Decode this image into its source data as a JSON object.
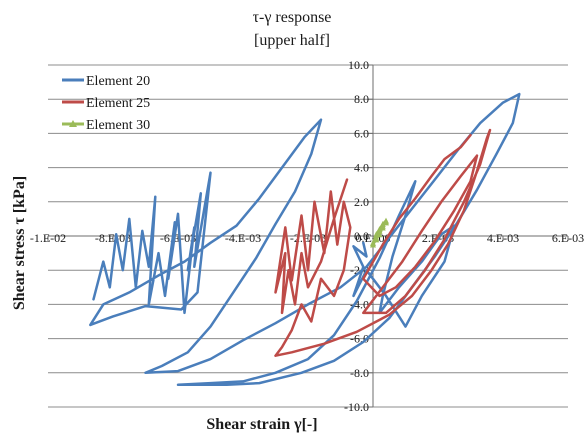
{
  "chart_data": {
    "type": "line",
    "title": "τ-γ response",
    "subtitle": "[upper half]",
    "xlabel": "Shear strain γ[-]",
    "ylabel": "Shear stress τ [kPa]",
    "xlim": [
      -0.01,
      0.006
    ],
    "ylim": [
      -10,
      10
    ],
    "x_ticks": [
      -0.01,
      -0.008,
      -0.006,
      -0.004,
      -0.002,
      0.0,
      0.002,
      0.004,
      0.006
    ],
    "x_tick_labels": [
      "-1.E-02",
      "-8.E-03",
      "-6.E-03",
      "-4.E-03",
      "-2.E-03",
      "0.E+00",
      "2.E-03",
      "4.E-03",
      "6.E-03"
    ],
    "y_ticks": [
      -10,
      -8,
      -6,
      -4,
      -2,
      0,
      2,
      4,
      6,
      8,
      10
    ],
    "y_tick_labels": [
      "-10.0",
      "-8.0",
      "-6.0",
      "-4.0",
      "-2.0",
      "0.0",
      "2.0",
      "4.0",
      "6.0",
      "8.0",
      "10.0"
    ],
    "grid": true,
    "legend_position": "top-left",
    "series": [
      {
        "name": "Element 20",
        "color": "#4a7ebb",
        "marker": "none",
        "points": [
          [
            -0.0086,
            -3.7
          ],
          [
            -0.0083,
            -1.5
          ],
          [
            -0.0081,
            -3.0
          ],
          [
            -0.0079,
            0.1
          ],
          [
            -0.0077,
            -2.0
          ],
          [
            -0.0075,
            1.0
          ],
          [
            -0.0073,
            -3.0
          ],
          [
            -0.0071,
            0.3
          ],
          [
            -0.0069,
            -1.8
          ],
          [
            -0.0067,
            2.3
          ],
          [
            -0.0069,
            -4.0
          ],
          [
            -0.0066,
            -1.0
          ],
          [
            -0.0064,
            -3.5
          ],
          [
            -0.0061,
            0.8
          ],
          [
            -0.0063,
            -2.5
          ],
          [
            -0.006,
            1.3
          ],
          [
            -0.0058,
            -4.5
          ],
          [
            -0.0055,
            0.5
          ],
          [
            -0.0057,
            -2.0
          ],
          [
            -0.0053,
            2.5
          ],
          [
            -0.0055,
            -1.8
          ],
          [
            -0.005,
            3.7
          ],
          [
            -0.0054,
            -3.3
          ],
          [
            -0.0059,
            -4.3
          ],
          [
            -0.007,
            -4.1
          ],
          [
            -0.008,
            -4.7
          ],
          [
            -0.0087,
            -5.2
          ],
          [
            -0.0083,
            -4.0
          ],
          [
            -0.0075,
            -3.3
          ],
          [
            -0.0065,
            -2.2
          ],
          [
            -0.0058,
            -1.5
          ],
          [
            -0.005,
            -0.4
          ],
          [
            -0.0042,
            0.6
          ],
          [
            -0.0035,
            2.2
          ],
          [
            -0.0028,
            4.0
          ],
          [
            -0.0021,
            5.8
          ],
          [
            -0.0016,
            6.8
          ],
          [
            -0.0019,
            4.8
          ],
          [
            -0.0024,
            2.6
          ],
          [
            -0.003,
            0.7
          ],
          [
            -0.0036,
            -1.3
          ],
          [
            -0.0043,
            -3.3
          ],
          [
            -0.005,
            -5.3
          ],
          [
            -0.0057,
            -6.8
          ],
          [
            -0.0065,
            -7.6
          ],
          [
            -0.007,
            -8.0
          ],
          [
            -0.006,
            -7.9
          ],
          [
            -0.005,
            -7.2
          ],
          [
            -0.004,
            -6.1
          ],
          [
            -0.003,
            -5.1
          ],
          [
            -0.002,
            -4.0
          ],
          [
            -0.001,
            -3.0
          ],
          [
            -0.0002,
            -1.8
          ],
          [
            0.0005,
            -0.1
          ],
          [
            0.0012,
            1.6
          ],
          [
            0.0019,
            3.3
          ],
          [
            0.0026,
            5.0
          ],
          [
            0.0033,
            6.6
          ],
          [
            0.004,
            7.8
          ],
          [
            0.0045,
            8.3
          ],
          [
            0.0043,
            6.6
          ],
          [
            0.0038,
            4.8
          ],
          [
            0.0032,
            2.7
          ],
          [
            0.0026,
            0.8
          ],
          [
            0.0019,
            -1.2
          ],
          [
            0.0012,
            -3.0
          ],
          [
            0.0005,
            -4.8
          ],
          [
            -0.0003,
            -6.2
          ],
          [
            -0.0012,
            -7.3
          ],
          [
            -0.0022,
            -8.0
          ],
          [
            -0.0035,
            -8.6
          ],
          [
            -0.0045,
            -8.7
          ],
          [
            -0.006,
            -8.7
          ],
          [
            -0.005,
            -8.6
          ],
          [
            -0.004,
            -8.5
          ],
          [
            -0.003,
            -8.0
          ],
          [
            -0.002,
            -7.2
          ],
          [
            -0.0012,
            -5.8
          ],
          [
            -0.0005,
            -3.8
          ],
          [
            0.0002,
            -1.3
          ],
          [
            0.0008,
            1.2
          ],
          [
            0.0013,
            3.2
          ],
          [
            0.001,
            1.2
          ],
          [
            0.0006,
            -1.2
          ],
          [
            0.0003,
            -3.5
          ],
          [
            0.0002,
            -4.5
          ],
          [
            0.0008,
            -3.0
          ],
          [
            0.0015,
            -1.5
          ],
          [
            0.0021,
            0.1
          ],
          [
            0.0025,
            0.6
          ],
          [
            0.0022,
            -1.5
          ],
          [
            0.0015,
            -3.5
          ],
          [
            0.001,
            -5.3
          ],
          [
            0.0004,
            -3.5
          ],
          [
            -0.0002,
            -2.0
          ],
          [
            -0.0006,
            -3.5
          ],
          [
            -0.0003,
            -1.8
          ],
          [
            -0.0006,
            -0.6
          ],
          [
            -0.0002,
            -1.2
          ],
          [
            -0.0003,
            -0.4
          ]
        ]
      },
      {
        "name": "Element 25",
        "color": "#be4b48",
        "marker": "none",
        "points": [
          [
            -0.0008,
            3.3
          ],
          [
            -0.0012,
            1.0
          ],
          [
            -0.0016,
            -1.5
          ],
          [
            -0.002,
            -3.0
          ],
          [
            -0.0022,
            -1.0
          ],
          [
            -0.0024,
            -4.0
          ],
          [
            -0.0026,
            -2.0
          ],
          [
            -0.0028,
            -4.5
          ],
          [
            -0.0027,
            -1.0
          ],
          [
            -0.003,
            -3.3
          ],
          [
            -0.0027,
            0.5
          ],
          [
            -0.0025,
            -2.6
          ],
          [
            -0.0022,
            1.2
          ],
          [
            -0.002,
            -2.0
          ],
          [
            -0.0018,
            2.0
          ],
          [
            -0.0015,
            -1.0
          ],
          [
            -0.0013,
            2.6
          ],
          [
            -0.0011,
            -0.5
          ],
          [
            -0.0009,
            2.0
          ],
          [
            -0.0007,
            0.5
          ],
          [
            -0.0009,
            -2.0
          ],
          [
            -0.0012,
            -3.5
          ],
          [
            -0.0016,
            -2.5
          ],
          [
            -0.0019,
            -5.0
          ],
          [
            -0.0022,
            -4.0
          ],
          [
            -0.0025,
            -5.5
          ],
          [
            -0.0028,
            -6.5
          ],
          [
            -0.003,
            -7.0
          ],
          [
            -0.0025,
            -6.8
          ],
          [
            -0.0015,
            -6.3
          ],
          [
            -0.0005,
            -5.6
          ],
          [
            0.0005,
            -4.6
          ],
          [
            0.0012,
            -3.5
          ],
          [
            0.0018,
            -2.0
          ],
          [
            0.0023,
            -0.5
          ],
          [
            0.0028,
            1.5
          ],
          [
            0.0032,
            3.8
          ],
          [
            0.0035,
            5.7
          ],
          [
            0.0036,
            6.2
          ],
          [
            0.0033,
            4.2
          ],
          [
            0.0028,
            2.0
          ],
          [
            0.0022,
            -0.2
          ],
          [
            0.0016,
            -2.0
          ],
          [
            0.001,
            -3.5
          ],
          [
            0.0004,
            -4.5
          ],
          [
            -0.0003,
            -4.5
          ],
          [
            0.0003,
            -3.0
          ],
          [
            0.0009,
            -1.5
          ],
          [
            0.0015,
            0.3
          ],
          [
            0.0021,
            2.0
          ],
          [
            0.0027,
            3.5
          ],
          [
            0.0032,
            4.7
          ],
          [
            0.003,
            3.2
          ],
          [
            0.0025,
            1.5
          ],
          [
            0.0019,
            -0.3
          ],
          [
            0.0013,
            -1.8
          ],
          [
            0.0007,
            -3.0
          ],
          [
            0.0002,
            -3.5
          ],
          [
            -0.0003,
            -2.5
          ],
          [
            0.0003,
            -0.5
          ],
          [
            0.0008,
            1.0
          ],
          [
            0.0013,
            2.2
          ],
          [
            0.0018,
            3.5
          ],
          [
            0.0022,
            4.5
          ],
          [
            0.0027,
            5.2
          ],
          [
            0.003,
            5.9
          ]
        ]
      },
      {
        "name": "Element 30",
        "color": "#9bbb59",
        "marker": "triangle",
        "points": [
          [
            0.0,
            -0.4
          ],
          [
            0.0001,
            0.1
          ],
          [
            0.0002,
            0.4
          ],
          [
            0.0003,
            0.7
          ],
          [
            0.0004,
            0.9
          ],
          [
            0.0003,
            0.5
          ],
          [
            0.0002,
            0.1
          ],
          [
            0.0001,
            -0.2
          ],
          [
            0.0,
            -0.5
          ],
          [
            0.0001,
            -0.1
          ],
          [
            0.0002,
            0.3
          ],
          [
            0.0003,
            0.6
          ],
          [
            0.0004,
            0.8
          ]
        ]
      }
    ]
  }
}
